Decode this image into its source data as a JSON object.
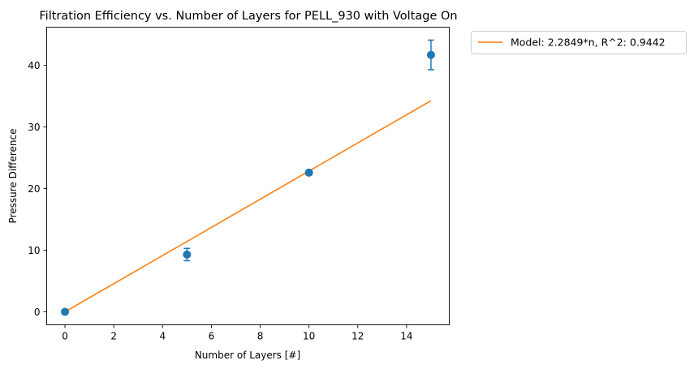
{
  "chart_data": {
    "type": "scatter",
    "title": "Filtration Efficiency vs. Number of Layers for PELL_930 with Voltage On",
    "xlabel": "Number of Layers [#]",
    "ylabel": "Pressure Difference",
    "xlim": [
      -0.75,
      15.75
    ],
    "ylim": [
      -2.1,
      46.2
    ],
    "xticks": [
      0,
      2,
      4,
      6,
      8,
      10,
      12,
      14
    ],
    "yticks": [
      0,
      10,
      20,
      30,
      40
    ],
    "grid": false,
    "legend_position": "outside-top-right",
    "series": [
      {
        "kind": "errorbar",
        "color": "#1f77b4",
        "x": [
          0,
          5,
          10,
          15
        ],
        "y": [
          0,
          9.3,
          22.6,
          41.7
        ],
        "yerr": [
          0.15,
          1.0,
          0.4,
          2.4
        ]
      },
      {
        "kind": "line",
        "name": "Model: 2.2849*n, R^2: 0.9442",
        "color": "#ff7f0e",
        "x": [
          0,
          15
        ],
        "y": [
          0,
          34.27
        ]
      }
    ]
  }
}
